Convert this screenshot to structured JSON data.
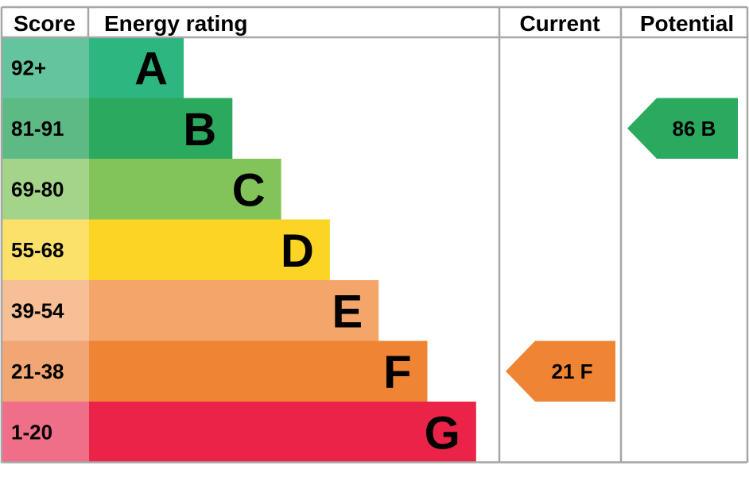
{
  "header": {
    "score": "Score",
    "energy_rating": "Energy rating",
    "current": "Current",
    "potential": "Potential"
  },
  "chart_data": {
    "type": "bar",
    "bands": [
      {
        "letter": "A",
        "range": "92+",
        "color": "#2db77f",
        "score_bg": "#63c49e"
      },
      {
        "letter": "B",
        "range": "81-91",
        "color": "#2aa95f",
        "score_bg": "#5eba85"
      },
      {
        "letter": "C",
        "range": "69-80",
        "color": "#82c45a",
        "score_bg": "#a3d48a"
      },
      {
        "letter": "D",
        "range": "55-68",
        "color": "#fcd423",
        "score_bg": "#fbe069"
      },
      {
        "letter": "E",
        "range": "39-54",
        "color": "#f4a56a",
        "score_bg": "#f6bf95"
      },
      {
        "letter": "F",
        "range": "21-38",
        "color": "#ef8434",
        "score_bg": "#f2a673"
      },
      {
        "letter": "G",
        "range": "1-20",
        "color": "#ec2348",
        "score_bg": "#ef6f88"
      }
    ],
    "current": {
      "value": 21,
      "letter": "F",
      "label": "21  F",
      "color": "#ef8434"
    },
    "potential": {
      "value": 86,
      "letter": "B",
      "label": "86  B",
      "color": "#2aa95f"
    }
  }
}
